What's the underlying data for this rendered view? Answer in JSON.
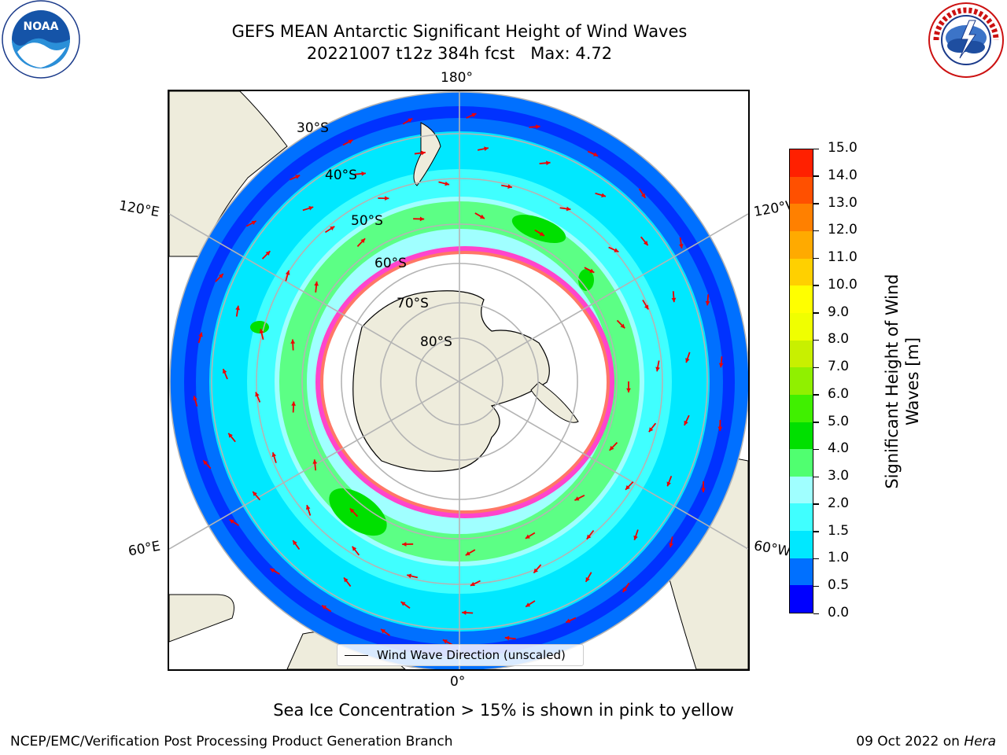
{
  "title": {
    "line1": "GEFS MEAN Antarctic Significant Height of Wind Waves",
    "line2": "20221007 t12z 384h fcst   Max: 4.72"
  },
  "logos": {
    "noaa_text": "NOAA",
    "noaa_ring_top": "NATIONAL OCEANIC AND ATMOSPHERIC ADMINISTRATION",
    "noaa_ring_bottom": "U.S. DEPARTMENT OF COMMERCE",
    "nws_ring": "NATIONAL WEATHER SERVICE"
  },
  "map": {
    "projection": "south-polar-stereographic",
    "lon_labels": {
      "top": "180°",
      "bottom": "0°",
      "upper_left": "120°E",
      "lower_left": "60°E",
      "upper_right": "120°W",
      "lower_right": "60°W"
    },
    "lat_labels": [
      "30°S",
      "40°S",
      "50°S",
      "60°S",
      "70°S",
      "80°S"
    ],
    "legend_label": "Wind Wave Direction (unscaled)"
  },
  "colorbar": {
    "label_line1": "Significant Height of Wind",
    "label_line2": "Waves [m]",
    "ticks": [
      "15.0",
      "14.0",
      "13.0",
      "12.0",
      "11.0",
      "10.0",
      "9.0",
      "8.0",
      "7.0",
      "6.0",
      "5.0",
      "4.0",
      "3.0",
      "2.0",
      "1.5",
      "1.0",
      "0.5",
      "0.0"
    ],
    "colors": [
      "#0000ff",
      "#0070ff",
      "#00e8ff",
      "#40ffff",
      "#a0ffff",
      "#50ff70",
      "#00e000",
      "#40f000",
      "#90f000",
      "#c8f000",
      "#f0ff00",
      "#ffff00",
      "#ffd000",
      "#ffaa00",
      "#ff8000",
      "#ff5000",
      "#ff2000"
    ]
  },
  "colors": {
    "land": "#eeecdc",
    "ice": "#ff44cc",
    "arrow": "#ee0000",
    "grid": "#b4b4b4"
  },
  "note": "Sea Ice Concentration > 15% is shown in pink to yellow",
  "footer": {
    "left": "NCEP/EMC/Verification Post Processing Product Generation Branch",
    "right_date": "09 Oct 2022 on ",
    "right_machine": "Hera"
  }
}
